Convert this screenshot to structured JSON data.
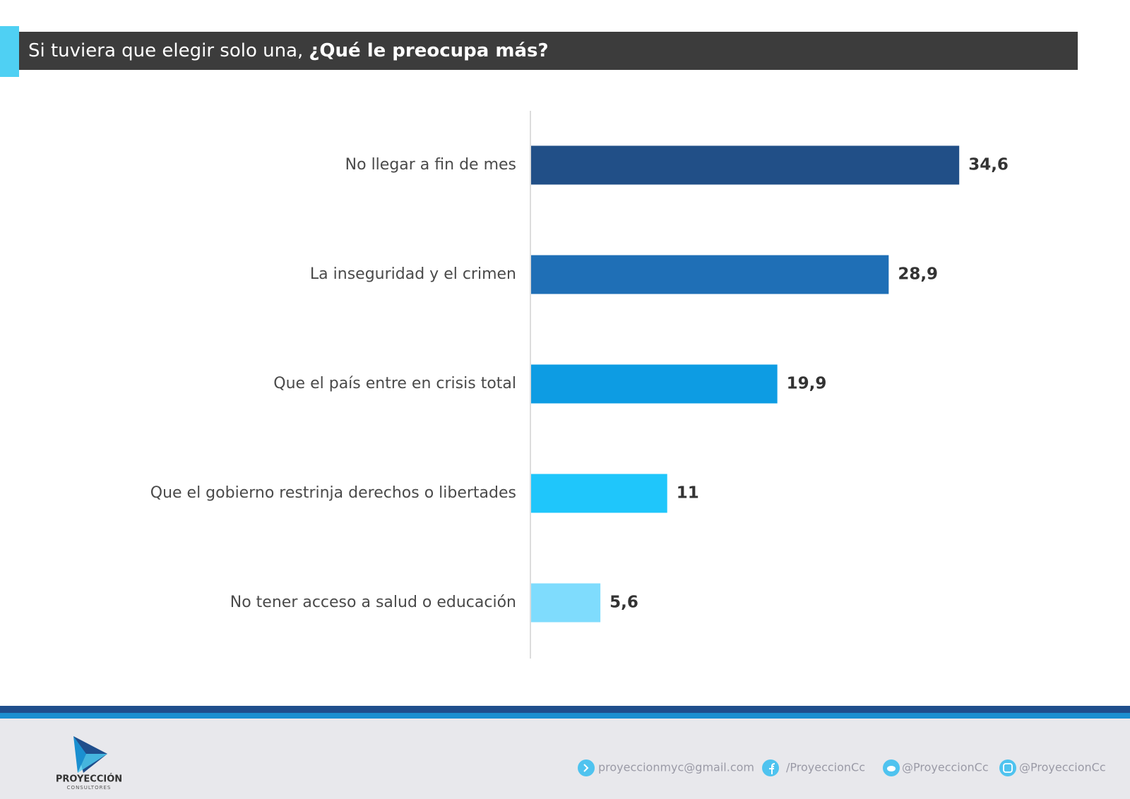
{
  "chart_data": {
    "type": "hbar",
    "title": "Si tuviera que elegir solo una,",
    "title_emphasis": "¿Qué le preocupa más?",
    "categories": [
      "No llegar a fin de mes",
      "La inseguridad y el crimen",
      "Que el país entre en crisis total",
      "Que el gobierno restrinja derechos o libertades",
      "No tener acceso a salud o educación"
    ],
    "values": [
      34.6,
      28.9,
      19.9,
      11,
      5.6
    ],
    "value_labels": [
      "34,6",
      "28,9",
      "19,9",
      "11",
      "5,6"
    ],
    "colors": [
      "#214f87",
      "#1f6fb6",
      "#0d9ce3",
      "#1fc6fb",
      "#7fdcfd"
    ]
  },
  "footer": {
    "brand": "PROYECCIÓN",
    "brand_sub": "CONSULTORES",
    "email": "proyeccionmyc@gmail.com",
    "facebook": "/ProyeccionCc",
    "twitter": "@ProyeccionCc",
    "instagram": "@ProyeccionCc"
  }
}
